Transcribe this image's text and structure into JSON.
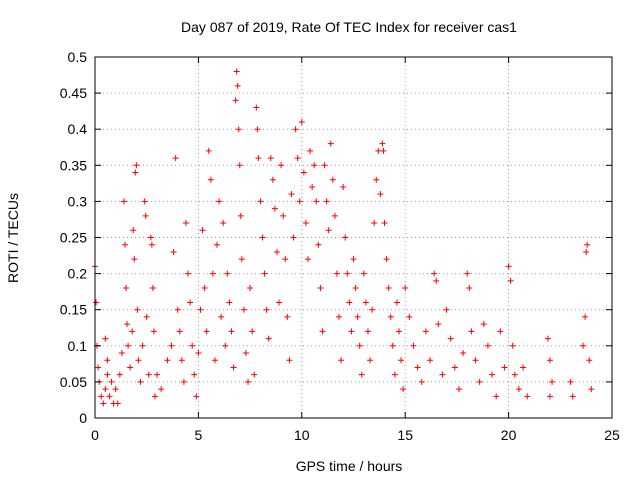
{
  "chart_data": {
    "type": "scatter",
    "title": "Day 087 of 2019, Rate Of TEC Index for receiver cas1",
    "xlabel": "GPS time / hours",
    "ylabel": "ROTI / TECUs",
    "xlim": [
      0,
      25
    ],
    "ylim": [
      0,
      0.5
    ],
    "xticks": [
      0,
      5,
      10,
      15,
      20,
      25
    ],
    "xtick_labels": [
      "0",
      "5",
      "10",
      "15",
      "20",
      "25"
    ],
    "yticks": [
      0,
      0.05,
      0.1,
      0.15,
      0.2,
      0.25,
      0.3,
      0.35,
      0.4,
      0.45,
      0.5
    ],
    "ytick_labels": [
      "0",
      "0.05",
      "0.1",
      "0.15",
      "0.2",
      "0.25",
      "0.3",
      "0.35",
      "0.4",
      "0.45",
      "0.5"
    ],
    "grid": true,
    "marker": "+",
    "color": "#ff0000",
    "series": [
      {
        "name": "ROTI",
        "points": [
          [
            0.0,
            0.21
          ],
          [
            0.05,
            0.16
          ],
          [
            0.1,
            0.1
          ],
          [
            0.15,
            0.07
          ],
          [
            0.2,
            0.05
          ],
          [
            0.3,
            0.03
          ],
          [
            0.4,
            0.02
          ],
          [
            0.5,
            0.04
          ],
          [
            0.6,
            0.06
          ],
          [
            0.7,
            0.03
          ],
          [
            0.8,
            0.05
          ],
          [
            0.9,
            0.02
          ],
          [
            0.5,
            0.11
          ],
          [
            0.6,
            0.08
          ],
          [
            1.0,
            0.04
          ],
          [
            1.1,
            0.02
          ],
          [
            1.2,
            0.06
          ],
          [
            1.3,
            0.09
          ],
          [
            1.4,
            0.3
          ],
          [
            1.45,
            0.24
          ],
          [
            1.5,
            0.18
          ],
          [
            1.55,
            0.13
          ],
          [
            1.6,
            0.1
          ],
          [
            1.7,
            0.07
          ],
          [
            1.8,
            0.12
          ],
          [
            1.85,
            0.26
          ],
          [
            1.9,
            0.22
          ],
          [
            1.95,
            0.34
          ],
          [
            2.0,
            0.35
          ],
          [
            2.05,
            0.15
          ],
          [
            2.1,
            0.08
          ],
          [
            2.2,
            0.05
          ],
          [
            2.3,
            0.1
          ],
          [
            2.4,
            0.3
          ],
          [
            2.45,
            0.28
          ],
          [
            2.5,
            0.14
          ],
          [
            2.6,
            0.06
          ],
          [
            2.7,
            0.25
          ],
          [
            2.75,
            0.24
          ],
          [
            2.8,
            0.18
          ],
          [
            2.85,
            0.12
          ],
          [
            2.9,
            0.03
          ],
          [
            3.0,
            0.06
          ],
          [
            3.2,
            0.04
          ],
          [
            3.5,
            0.08
          ],
          [
            3.7,
            0.1
          ],
          [
            3.8,
            0.23
          ],
          [
            3.9,
            0.36
          ],
          [
            4.0,
            0.15
          ],
          [
            4.1,
            0.12
          ],
          [
            4.2,
            0.08
          ],
          [
            4.3,
            0.05
          ],
          [
            4.4,
            0.27
          ],
          [
            4.5,
            0.2
          ],
          [
            4.6,
            0.16
          ],
          [
            4.7,
            0.1
          ],
          [
            4.8,
            0.06
          ],
          [
            4.9,
            0.03
          ],
          [
            5.0,
            0.09
          ],
          [
            5.1,
            0.15
          ],
          [
            5.2,
            0.26
          ],
          [
            5.3,
            0.18
          ],
          [
            5.4,
            0.12
          ],
          [
            5.5,
            0.37
          ],
          [
            5.6,
            0.33
          ],
          [
            5.7,
            0.2
          ],
          [
            5.8,
            0.08
          ],
          [
            5.9,
            0.24
          ],
          [
            6.0,
            0.3
          ],
          [
            6.1,
            0.14
          ],
          [
            6.2,
            0.27
          ],
          [
            6.3,
            0.1
          ],
          [
            6.4,
            0.2
          ],
          [
            6.5,
            0.16
          ],
          [
            6.6,
            0.12
          ],
          [
            6.7,
            0.07
          ],
          [
            6.8,
            0.44
          ],
          [
            6.85,
            0.48
          ],
          [
            6.9,
            0.46
          ],
          [
            6.95,
            0.4
          ],
          [
            7.0,
            0.35
          ],
          [
            7.05,
            0.28
          ],
          [
            7.1,
            0.22
          ],
          [
            7.2,
            0.15
          ],
          [
            7.3,
            0.09
          ],
          [
            7.4,
            0.05
          ],
          [
            7.5,
            0.18
          ],
          [
            7.6,
            0.12
          ],
          [
            7.7,
            0.06
          ],
          [
            7.8,
            0.43
          ],
          [
            7.85,
            0.4
          ],
          [
            7.9,
            0.36
          ],
          [
            8.0,
            0.3
          ],
          [
            8.1,
            0.25
          ],
          [
            8.2,
            0.2
          ],
          [
            8.3,
            0.15
          ],
          [
            8.4,
            0.11
          ],
          [
            8.5,
            0.36
          ],
          [
            8.6,
            0.33
          ],
          [
            8.7,
            0.29
          ],
          [
            8.8,
            0.23
          ],
          [
            8.9,
            0.16
          ],
          [
            9.0,
            0.35
          ],
          [
            9.1,
            0.28
          ],
          [
            9.2,
            0.22
          ],
          [
            9.3,
            0.14
          ],
          [
            9.4,
            0.08
          ],
          [
            9.5,
            0.31
          ],
          [
            9.6,
            0.25
          ],
          [
            9.7,
            0.4
          ],
          [
            9.8,
            0.36
          ],
          [
            9.9,
            0.3
          ],
          [
            10.0,
            0.41
          ],
          [
            10.1,
            0.34
          ],
          [
            10.2,
            0.27
          ],
          [
            10.3,
            0.22
          ],
          [
            10.4,
            0.37
          ],
          [
            10.5,
            0.32
          ],
          [
            10.6,
            0.35
          ],
          [
            10.7,
            0.3
          ],
          [
            10.8,
            0.24
          ],
          [
            10.9,
            0.18
          ],
          [
            11.0,
            0.12
          ],
          [
            11.1,
            0.35
          ],
          [
            11.2,
            0.3
          ],
          [
            11.3,
            0.26
          ],
          [
            11.4,
            0.38
          ],
          [
            11.5,
            0.33
          ],
          [
            11.6,
            0.28
          ],
          [
            11.7,
            0.2
          ],
          [
            11.8,
            0.14
          ],
          [
            11.9,
            0.08
          ],
          [
            12.0,
            0.32
          ],
          [
            12.1,
            0.25
          ],
          [
            12.2,
            0.2
          ],
          [
            12.3,
            0.16
          ],
          [
            12.4,
            0.12
          ],
          [
            12.5,
            0.22
          ],
          [
            12.6,
            0.18
          ],
          [
            12.7,
            0.14
          ],
          [
            12.8,
            0.1
          ],
          [
            12.9,
            0.06
          ],
          [
            13.0,
            0.2
          ],
          [
            13.1,
            0.16
          ],
          [
            13.2,
            0.12
          ],
          [
            13.3,
            0.08
          ],
          [
            13.4,
            0.15
          ],
          [
            13.5,
            0.27
          ],
          [
            13.6,
            0.33
          ],
          [
            13.7,
            0.37
          ],
          [
            13.8,
            0.31
          ],
          [
            13.9,
            0.38
          ],
          [
            13.95,
            0.37
          ],
          [
            14.0,
            0.27
          ],
          [
            14.1,
            0.22
          ],
          [
            14.2,
            0.18
          ],
          [
            14.3,
            0.14
          ],
          [
            14.4,
            0.1
          ],
          [
            14.5,
            0.06
          ],
          [
            14.6,
            0.16
          ],
          [
            14.7,
            0.12
          ],
          [
            14.8,
            0.08
          ],
          [
            14.9,
            0.04
          ],
          [
            15.0,
            0.18
          ],
          [
            15.2,
            0.14
          ],
          [
            15.4,
            0.1
          ],
          [
            15.6,
            0.07
          ],
          [
            15.8,
            0.05
          ],
          [
            16.0,
            0.12
          ],
          [
            16.2,
            0.08
          ],
          [
            16.4,
            0.2
          ],
          [
            16.5,
            0.19
          ],
          [
            16.6,
            0.13
          ],
          [
            16.8,
            0.06
          ],
          [
            17.0,
            0.15
          ],
          [
            17.2,
            0.11
          ],
          [
            17.4,
            0.07
          ],
          [
            17.6,
            0.04
          ],
          [
            17.8,
            0.09
          ],
          [
            18.0,
            0.2
          ],
          [
            18.1,
            0.18
          ],
          [
            18.2,
            0.12
          ],
          [
            18.4,
            0.08
          ],
          [
            18.6,
            0.05
          ],
          [
            18.8,
            0.13
          ],
          [
            19.0,
            0.1
          ],
          [
            19.2,
            0.06
          ],
          [
            19.4,
            0.03
          ],
          [
            19.6,
            0.12
          ],
          [
            19.8,
            0.07
          ],
          [
            20.0,
            0.21
          ],
          [
            20.1,
            0.19
          ],
          [
            20.2,
            0.1
          ],
          [
            20.3,
            0.06
          ],
          [
            20.5,
            0.04
          ],
          [
            20.7,
            0.07
          ],
          [
            20.9,
            0.03
          ],
          [
            21.9,
            0.11
          ],
          [
            22.0,
            0.08
          ],
          [
            22.1,
            0.05
          ],
          [
            22.0,
            0.03
          ],
          [
            23.0,
            0.05
          ],
          [
            23.1,
            0.03
          ],
          [
            23.6,
            0.1
          ],
          [
            23.7,
            0.14
          ],
          [
            23.75,
            0.23
          ],
          [
            23.8,
            0.24
          ],
          [
            23.9,
            0.08
          ],
          [
            24.0,
            0.04
          ]
        ]
      }
    ]
  }
}
